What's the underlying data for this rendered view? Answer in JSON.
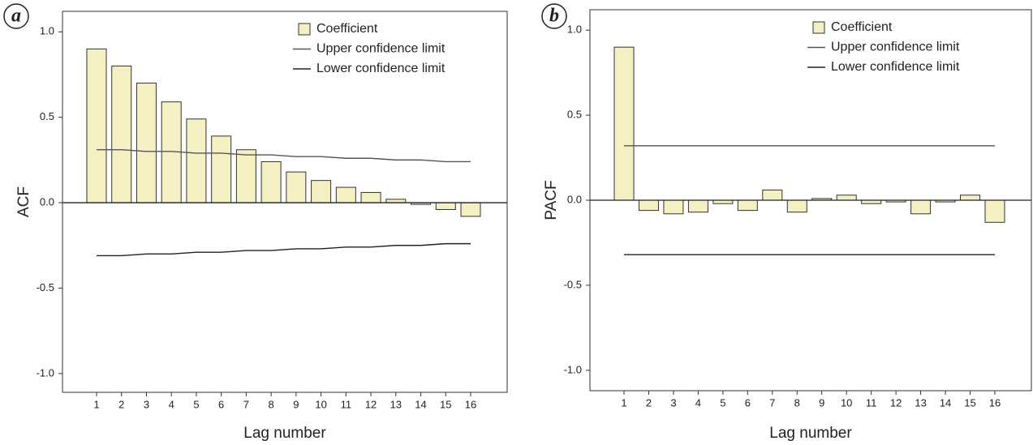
{
  "chart_data": [
    {
      "type": "bar",
      "panel_label": "a",
      "y_label": "ACF",
      "x_label": "Lag number",
      "categories": [
        "1",
        "2",
        "3",
        "4",
        "5",
        "6",
        "7",
        "8",
        "9",
        "10",
        "11",
        "12",
        "13",
        "14",
        "15",
        "16"
      ],
      "ylim": [
        -1.11,
        1.12
      ],
      "yticks": [
        {
          "value": 1,
          "label": "1.0"
        },
        0.5,
        {
          "value": 0,
          "label": "0.0"
        },
        -0.5,
        {
          "value": -1,
          "label": "-1.0"
        }
      ],
      "series": [
        {
          "name": "Coefficient",
          "type": "bar",
          "color": "#f4f0c4",
          "values": [
            0.9,
            0.8,
            0.7,
            0.59,
            0.49,
            0.39,
            0.31,
            0.24,
            0.18,
            0.13,
            0.09,
            0.06,
            0.02,
            -0.01,
            -0.04,
            -0.08
          ]
        },
        {
          "name": "Upper confidence limit",
          "type": "line",
          "color": "#555555",
          "values": [
            0.31,
            0.31,
            0.3,
            0.3,
            0.29,
            0.29,
            0.28,
            0.28,
            0.27,
            0.27,
            0.26,
            0.26,
            0.25,
            0.25,
            0.24,
            0.24
          ]
        },
        {
          "name": "Lower confidence limit",
          "type": "line",
          "color": "#222222",
          "values": [
            -0.31,
            -0.31,
            -0.3,
            -0.3,
            -0.29,
            -0.29,
            -0.28,
            -0.28,
            -0.27,
            -0.27,
            -0.26,
            -0.26,
            -0.25,
            -0.25,
            -0.24,
            -0.24
          ]
        }
      ]
    },
    {
      "type": "bar",
      "panel_label": "b",
      "y_label": "PACF",
      "x_label": "Lag number",
      "categories": [
        "1",
        "2",
        "3",
        "4",
        "5",
        "6",
        "7",
        "8",
        "9",
        "10",
        "11",
        "12",
        "13",
        "14",
        "15",
        "16"
      ],
      "ylim": [
        -1.12,
        1.12
      ],
      "yticks": [
        {
          "value": 1,
          "label": "1.0"
        },
        0.5,
        {
          "value": 0,
          "label": "0.0"
        },
        -0.5,
        {
          "value": -1,
          "label": "-1.0"
        }
      ],
      "series": [
        {
          "name": "Coefficient",
          "type": "bar",
          "color": "#f4f0c4",
          "values": [
            0.9,
            -0.06,
            -0.08,
            -0.07,
            -0.02,
            -0.06,
            0.06,
            -0.07,
            0.01,
            0.03,
            -0.02,
            -0.01,
            -0.08,
            -0.01,
            0.03,
            -0.13
          ]
        },
        {
          "name": "Upper confidence limit",
          "type": "line",
          "color": "#555555",
          "values": [
            0.32,
            0.32,
            0.32,
            0.32,
            0.32,
            0.32,
            0.32,
            0.32,
            0.32,
            0.32,
            0.32,
            0.32,
            0.32,
            0.32,
            0.32,
            0.32
          ]
        },
        {
          "name": "Lower confidence limit",
          "type": "line",
          "color": "#222222",
          "values": [
            -0.32,
            -0.32,
            -0.32,
            -0.32,
            -0.32,
            -0.32,
            -0.32,
            -0.32,
            -0.32,
            -0.32,
            -0.32,
            -0.32,
            -0.32,
            -0.32,
            -0.32,
            -0.32
          ]
        }
      ]
    }
  ]
}
